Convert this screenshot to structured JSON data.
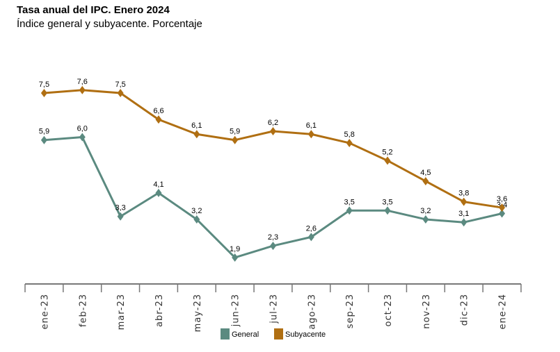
{
  "chart_data": {
    "type": "line",
    "title": "Tasa anual del IPC. Enero 2024",
    "subtitle": "Índice general y subyacente. Porcentaje",
    "categories": [
      "ene-23",
      "feb-23",
      "mar-23",
      "abr-23",
      "may-23",
      "jun-23",
      "jul-23",
      "ago-23",
      "sep-23",
      "oct-23",
      "nov-23",
      "dic-23",
      "ene-24"
    ],
    "series": [
      {
        "name": "General",
        "color": "#5b8a80",
        "values": [
          5.9,
          6.0,
          3.3,
          4.1,
          3.2,
          1.9,
          2.3,
          2.6,
          3.5,
          3.5,
          3.2,
          3.1,
          3.4
        ],
        "labels": [
          "5,9",
          "6,0",
          "3,3",
          "4,1",
          "3,2",
          "1,9",
          "2,3",
          "2,6",
          "3,5",
          "3,5",
          "3,2",
          "3,1",
          "3,4"
        ]
      },
      {
        "name": "Subyacente",
        "color": "#b06f12",
        "values": [
          7.5,
          7.6,
          7.5,
          6.6,
          6.1,
          5.9,
          6.2,
          6.1,
          5.8,
          5.2,
          4.5,
          3.8,
          3.6
        ],
        "labels": [
          "7,5",
          "7,6",
          "7,5",
          "6,6",
          "6,1",
          "5,9",
          "6,2",
          "6,1",
          "5,8",
          "5,2",
          "4,5",
          "3,8",
          "3,6"
        ]
      }
    ],
    "marker": "diamond",
    "grid": false,
    "legend": "bottom",
    "xlabel": "",
    "ylabel": ""
  }
}
